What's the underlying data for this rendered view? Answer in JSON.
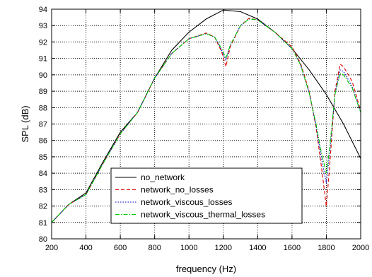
{
  "chart_data": {
    "type": "line",
    "xlabel": "frequency (Hz)",
    "ylabel": "SPL (dB)",
    "xlim": [
      200,
      2000
    ],
    "ylim": [
      80,
      94
    ],
    "xticks": [
      200,
      400,
      600,
      800,
      1000,
      1200,
      1400,
      1600,
      1800,
      2000
    ],
    "yticks": [
      80,
      81,
      82,
      83,
      84,
      85,
      86,
      87,
      88,
      89,
      90,
      91,
      92,
      93,
      94
    ],
    "grid": true,
    "legend_position": "bottom-center",
    "series": [
      {
        "name": "no_network",
        "color": "#000000",
        "dash": "solid",
        "points": [
          [
            200,
            81.0
          ],
          [
            300,
            82.1
          ],
          [
            400,
            82.8
          ],
          [
            500,
            84.7
          ],
          [
            600,
            86.5
          ],
          [
            700,
            87.7
          ],
          [
            800,
            89.8
          ],
          [
            900,
            91.5
          ],
          [
            1000,
            92.6
          ],
          [
            1100,
            93.4
          ],
          [
            1200,
            93.95
          ],
          [
            1300,
            93.85
          ],
          [
            1400,
            93.4
          ],
          [
            1500,
            92.6
          ],
          [
            1600,
            91.6
          ],
          [
            1700,
            90.3
          ],
          [
            1800,
            88.8
          ],
          [
            1900,
            87.0
          ],
          [
            2000,
            84.9
          ]
        ]
      },
      {
        "name": "network_no_losses",
        "color": "#dd0000",
        "dash": "dashed",
        "points": [
          [
            200,
            81.0
          ],
          [
            300,
            82.1
          ],
          [
            400,
            82.7
          ],
          [
            500,
            84.6
          ],
          [
            600,
            86.4
          ],
          [
            700,
            87.7
          ],
          [
            800,
            89.8
          ],
          [
            900,
            91.3
          ],
          [
            1000,
            92.2
          ],
          [
            1100,
            92.55
          ],
          [
            1150,
            92.3
          ],
          [
            1190,
            91.4
          ],
          [
            1215,
            90.5
          ],
          [
            1240,
            91.7
          ],
          [
            1300,
            93.0
          ],
          [
            1350,
            93.45
          ],
          [
            1400,
            93.35
          ],
          [
            1500,
            92.6
          ],
          [
            1600,
            91.7
          ],
          [
            1650,
            90.7
          ],
          [
            1700,
            89.0
          ],
          [
            1740,
            86.8
          ],
          [
            1770,
            84.5
          ],
          [
            1800,
            82.0
          ],
          [
            1820,
            84.5
          ],
          [
            1850,
            89.0
          ],
          [
            1880,
            90.65
          ],
          [
            1900,
            90.5
          ],
          [
            1950,
            89.6
          ],
          [
            2000,
            87.8
          ]
        ]
      },
      {
        "name": "network_viscous_losses",
        "color": "#0000cc",
        "dash": "dotted",
        "points": [
          [
            200,
            81.0
          ],
          [
            300,
            82.1
          ],
          [
            400,
            82.7
          ],
          [
            500,
            84.6
          ],
          [
            600,
            86.4
          ],
          [
            700,
            87.7
          ],
          [
            800,
            89.8
          ],
          [
            900,
            91.3
          ],
          [
            1000,
            92.2
          ],
          [
            1100,
            92.5
          ],
          [
            1150,
            92.3
          ],
          [
            1190,
            91.5
          ],
          [
            1215,
            90.9
          ],
          [
            1240,
            91.8
          ],
          [
            1300,
            93.0
          ],
          [
            1350,
            93.4
          ],
          [
            1400,
            93.35
          ],
          [
            1500,
            92.6
          ],
          [
            1600,
            91.6
          ],
          [
            1650,
            90.6
          ],
          [
            1700,
            88.9
          ],
          [
            1740,
            86.9
          ],
          [
            1770,
            85.0
          ],
          [
            1800,
            83.4
          ],
          [
            1820,
            85.3
          ],
          [
            1850,
            88.8
          ],
          [
            1880,
            90.3
          ],
          [
            1900,
            90.2
          ],
          [
            1950,
            89.3
          ],
          [
            2000,
            87.7
          ]
        ]
      },
      {
        "name": "network_viscous_thermal_losses",
        "color": "#00cc00",
        "dash": "dashdot",
        "points": [
          [
            200,
            81.0
          ],
          [
            300,
            82.1
          ],
          [
            400,
            82.7
          ],
          [
            500,
            84.6
          ],
          [
            600,
            86.4
          ],
          [
            700,
            87.7
          ],
          [
            800,
            89.8
          ],
          [
            900,
            91.3
          ],
          [
            1000,
            92.2
          ],
          [
            1100,
            92.5
          ],
          [
            1150,
            92.3
          ],
          [
            1190,
            91.6
          ],
          [
            1215,
            91.0
          ],
          [
            1240,
            91.8
          ],
          [
            1300,
            93.0
          ],
          [
            1350,
            93.4
          ],
          [
            1400,
            93.35
          ],
          [
            1500,
            92.6
          ],
          [
            1600,
            91.6
          ],
          [
            1650,
            90.6
          ],
          [
            1700,
            88.9
          ],
          [
            1740,
            87.0
          ],
          [
            1770,
            85.3
          ],
          [
            1800,
            84.0
          ],
          [
            1820,
            85.6
          ],
          [
            1850,
            88.8
          ],
          [
            1880,
            90.1
          ],
          [
            1900,
            90.0
          ],
          [
            1950,
            89.2
          ],
          [
            2000,
            87.7
          ]
        ]
      }
    ]
  }
}
